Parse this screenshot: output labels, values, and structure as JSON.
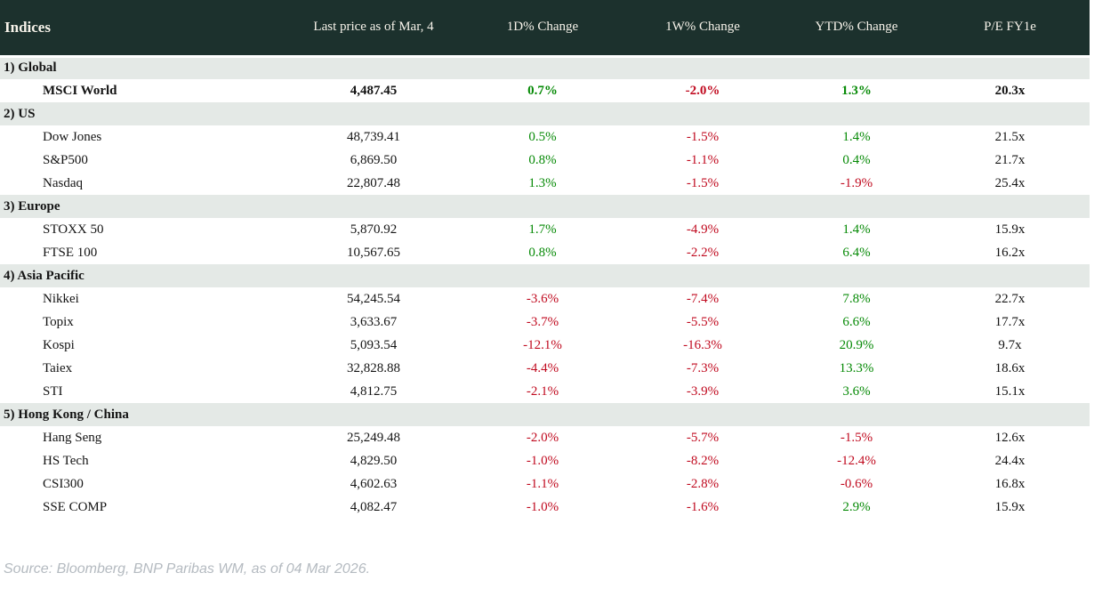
{
  "colors": {
    "header_bg": "#1c312d",
    "header_text": "#f7f3ea",
    "section_bg": "#e4e9e6",
    "positive": "#068a06",
    "negative": "#c00a1f",
    "text": "#141414",
    "source_text": "#b4bac0"
  },
  "header": {
    "columns": [
      "Indices",
      "Last price as of Mar, 4",
      "1D% Change",
      "1W% Change",
      "YTD% Change",
      "P/E FY1e"
    ]
  },
  "sections": [
    {
      "label": "1) Global",
      "rows": [
        {
          "name": "MSCI World",
          "bold": true,
          "last_price": "4,487.45",
          "d1": "0.7%",
          "w1": "-2.0%",
          "ytd": "1.3%",
          "pe": "20.3x"
        }
      ]
    },
    {
      "label": "2) US",
      "rows": [
        {
          "name": "Dow Jones",
          "last_price": "48,739.41",
          "d1": "0.5%",
          "w1": "-1.5%",
          "ytd": "1.4%",
          "pe": "21.5x"
        },
        {
          "name": "S&P500",
          "last_price": "6,869.50",
          "d1": "0.8%",
          "w1": "-1.1%",
          "ytd": "0.4%",
          "pe": "21.7x"
        },
        {
          "name": "Nasdaq",
          "last_price": "22,807.48",
          "d1": "1.3%",
          "w1": "-1.5%",
          "ytd": "-1.9%",
          "pe": "25.4x"
        }
      ]
    },
    {
      "label": "3) Europe",
      "rows": [
        {
          "name": "STOXX 50",
          "last_price": "5,870.92",
          "d1": "1.7%",
          "w1": "-4.9%",
          "ytd": "1.4%",
          "pe": "15.9x"
        },
        {
          "name": "FTSE 100",
          "last_price": "10,567.65",
          "d1": "0.8%",
          "w1": "-2.2%",
          "ytd": "6.4%",
          "pe": "16.2x"
        }
      ]
    },
    {
      "label": "4) Asia Pacific",
      "rows": [
        {
          "name": "Nikkei",
          "last_price": "54,245.54",
          "d1": "-3.6%",
          "w1": "-7.4%",
          "ytd": "7.8%",
          "pe": "22.7x"
        },
        {
          "name": "Topix",
          "last_price": "3,633.67",
          "d1": "-3.7%",
          "w1": "-5.5%",
          "ytd": "6.6%",
          "pe": "17.7x"
        },
        {
          "name": "Kospi",
          "last_price": "5,093.54",
          "d1": "-12.1%",
          "w1": "-16.3%",
          "ytd": "20.9%",
          "pe": "9.7x"
        },
        {
          "name": "Taiex",
          "last_price": "32,828.88",
          "d1": "-4.4%",
          "w1": "-7.3%",
          "ytd": "13.3%",
          "pe": "18.6x"
        },
        {
          "name": "STI",
          "last_price": "4,812.75",
          "d1": "-2.1%",
          "w1": "-3.9%",
          "ytd": "3.6%",
          "pe": "15.1x"
        }
      ]
    },
    {
      "label": "5) Hong Kong / China",
      "rows": [
        {
          "name": "Hang Seng",
          "last_price": "25,249.48",
          "d1": "-2.0%",
          "w1": "-5.7%",
          "ytd": "-1.5%",
          "pe": "12.6x"
        },
        {
          "name": "HS Tech",
          "last_price": "4,829.50",
          "d1": "-1.0%",
          "w1": "-8.2%",
          "ytd": "-12.4%",
          "pe": "24.4x"
        },
        {
          "name": "CSI300",
          "last_price": "4,602.63",
          "d1": "-1.1%",
          "w1": "-2.8%",
          "ytd": "-0.6%",
          "pe": "16.8x"
        },
        {
          "name": "SSE COMP",
          "last_price": "4,082.47",
          "d1": "-1.0%",
          "w1": "-1.6%",
          "ytd": "2.9%",
          "pe": "15.9x"
        }
      ]
    }
  ],
  "footer": {
    "source": "Source: Bloomberg, BNP Paribas WM, as of 04 Mar 2026."
  }
}
